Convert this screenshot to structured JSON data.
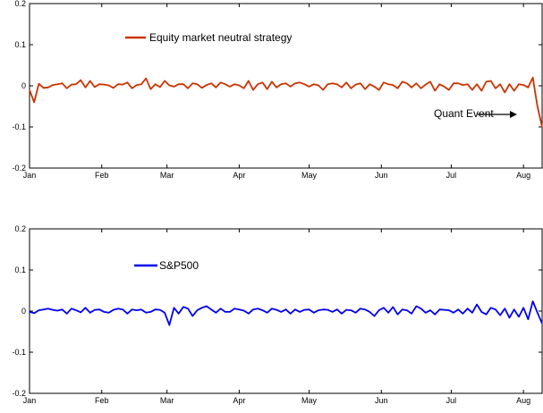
{
  "chart_data": [
    {
      "type": "line",
      "title": "",
      "xlabel": "",
      "ylabel": "",
      "ylim": [
        -0.2,
        0.2
      ],
      "yticks": [
        -0.2,
        -0.1,
        0,
        0.1,
        0.2
      ],
      "ytick_labels": [
        "-0.2",
        "-0.1",
        "0",
        "0.1",
        "0.2"
      ],
      "xlim": [
        0,
        220
      ],
      "x_categories": [
        "Jan",
        "Feb",
        "Mar",
        "Apr",
        "May",
        "Jun",
        "Jul",
        "Aug"
      ],
      "x_category_positions": [
        0,
        31,
        59,
        90,
        120,
        151,
        181,
        212
      ],
      "grid": false,
      "legend": "top-left",
      "series": [
        {
          "name": "Equity market neutral strategy",
          "color": "#cc3300",
          "x": [
            0,
            2,
            4,
            6,
            8,
            10,
            12,
            14,
            16,
            18,
            20,
            22,
            24,
            26,
            28,
            30,
            32,
            34,
            36,
            38,
            40,
            42,
            44,
            46,
            48,
            50,
            52,
            54,
            56,
            58,
            60,
            62,
            64,
            66,
            68,
            70,
            72,
            74,
            76,
            78,
            80,
            82,
            84,
            86,
            88,
            90,
            92,
            94,
            96,
            98,
            100,
            102,
            104,
            106,
            108,
            110,
            112,
            114,
            116,
            118,
            120,
            122,
            124,
            126,
            128,
            130,
            132,
            134,
            136,
            138,
            140,
            142,
            144,
            146,
            148,
            150,
            152,
            154,
            156,
            158,
            160,
            162,
            164,
            166,
            168,
            170,
            172,
            174,
            176,
            178,
            180,
            182,
            184,
            186,
            188,
            190,
            192,
            194,
            196,
            198,
            200,
            202,
            204,
            206,
            208,
            210,
            212,
            214,
            216,
            218,
            220
          ],
          "values": [
            -0.01,
            -0.04,
            0.005,
            -0.005,
            -0.004,
            0.002,
            0.004,
            0.006,
            -0.006,
            0.003,
            0.004,
            0.014,
            -0.004,
            0.012,
            -0.003,
            0.004,
            0.003,
            0.001,
            -0.005,
            0.004,
            0.003,
            0.008,
            -0.006,
            0.002,
            0.004,
            0.018,
            -0.008,
            0.004,
            -0.003,
            0.012,
            0.001,
            -0.002,
            0.004,
            0.004,
            -0.006,
            0.006,
            0.004,
            -0.005,
            0.002,
            0.006,
            -0.004,
            0.008,
            0.004,
            -0.002,
            0.004,
            0.001,
            -0.006,
            0.012,
            -0.01,
            0.004,
            0.008,
            -0.008,
            0.01,
            -0.004,
            0.004,
            0.006,
            -0.002,
            0.006,
            0.008,
            0.004,
            -0.002,
            0.004,
            0.001,
            -0.01,
            0.004,
            0.006,
            0.004,
            -0.004,
            0.008,
            -0.006,
            0.003,
            0.006,
            -0.008,
            0.004,
            -0.002,
            -0.01,
            0.008,
            0.004,
            0.002,
            -0.006,
            0.01,
            0.006,
            -0.004,
            0.006,
            -0.006,
            0.003,
            0.01,
            -0.012,
            0.004,
            -0.002,
            -0.01,
            0.006,
            0.006,
            0.002,
            0.004,
            -0.01,
            0.004,
            -0.012,
            0.01,
            0.012,
            -0.006,
            0.004,
            -0.016,
            0.004,
            -0.012,
            0.004,
            0.002,
            -0.004,
            0.02,
            -0.05,
            -0.1
          ]
        }
      ],
      "annotation": {
        "text": "Quant Event"
      }
    },
    {
      "type": "line",
      "title": "",
      "xlabel": "",
      "ylabel": "",
      "ylim": [
        -0.2,
        0.2
      ],
      "yticks": [
        -0.2,
        -0.1,
        0,
        0.1,
        0.2
      ],
      "ytick_labels": [
        "-0.2",
        "-0.1",
        "0",
        "0.1",
        "0.2"
      ],
      "xlim": [
        0,
        220
      ],
      "x_categories": [
        "Jan",
        "Feb",
        "Mar",
        "Apr",
        "May",
        "Jun",
        "Jul",
        "Aug"
      ],
      "x_category_positions": [
        0,
        31,
        59,
        90,
        120,
        151,
        181,
        212
      ],
      "grid": false,
      "legend": "top-left",
      "series": [
        {
          "name": "S&P500",
          "color": "#0000ee",
          "x": [
            0,
            2,
            4,
            6,
            8,
            10,
            12,
            14,
            16,
            18,
            20,
            22,
            24,
            26,
            28,
            30,
            32,
            34,
            36,
            38,
            40,
            42,
            44,
            46,
            48,
            50,
            52,
            54,
            56,
            58,
            60,
            62,
            64,
            66,
            68,
            70,
            72,
            74,
            76,
            78,
            80,
            82,
            84,
            86,
            88,
            90,
            92,
            94,
            96,
            98,
            100,
            102,
            104,
            106,
            108,
            110,
            112,
            114,
            116,
            118,
            120,
            122,
            124,
            126,
            128,
            130,
            132,
            134,
            136,
            138,
            140,
            142,
            144,
            146,
            148,
            150,
            152,
            154,
            156,
            158,
            160,
            162,
            164,
            166,
            168,
            170,
            172,
            174,
            176,
            178,
            180,
            182,
            184,
            186,
            188,
            190,
            192,
            194,
            196,
            198,
            200,
            202,
            204,
            206,
            208,
            210,
            212,
            214,
            216,
            218,
            220
          ],
          "values": [
            -0.002,
            -0.005,
            0.002,
            0.004,
            0.006,
            0.003,
            0.001,
            0.004,
            -0.006,
            0.006,
            0.002,
            -0.003,
            0.008,
            -0.004,
            0.003,
            0.004,
            -0.002,
            -0.004,
            0.003,
            0.006,
            0.004,
            -0.006,
            0.004,
            0.002,
            0.004,
            -0.004,
            -0.002,
            0.004,
            0.003,
            -0.004,
            -0.034,
            0.008,
            -0.006,
            0.01,
            0.006,
            -0.012,
            0.002,
            0.008,
            0.012,
            0.004,
            -0.004,
            0.006,
            -0.002,
            -0.002,
            0.006,
            0.004,
            0.001,
            -0.006,
            0.004,
            0.006,
            0.002,
            -0.004,
            0.006,
            0.003,
            -0.002,
            0.004,
            -0.006,
            0.004,
            -0.002,
            0.003,
            0.004,
            -0.004,
            0.002,
            0.004,
            0.003,
            -0.002,
            0.004,
            -0.006,
            0.003,
            0.002,
            -0.004,
            0.006,
            0.004,
            -0.002,
            -0.012,
            0.002,
            0.008,
            -0.004,
            0.01,
            -0.008,
            0.004,
            0.002,
            -0.006,
            0.012,
            0.006,
            -0.004,
            0.002,
            -0.008,
            0.004,
            0.003,
            0.002,
            -0.004,
            0.004,
            -0.006,
            0.006,
            -0.004,
            0.016,
            -0.002,
            -0.008,
            0.008,
            0.004,
            -0.01,
            0.006,
            -0.016,
            0.004,
            -0.014,
            0.008,
            -0.02,
            0.024,
            -0.004,
            -0.03
          ]
        }
      ]
    }
  ]
}
